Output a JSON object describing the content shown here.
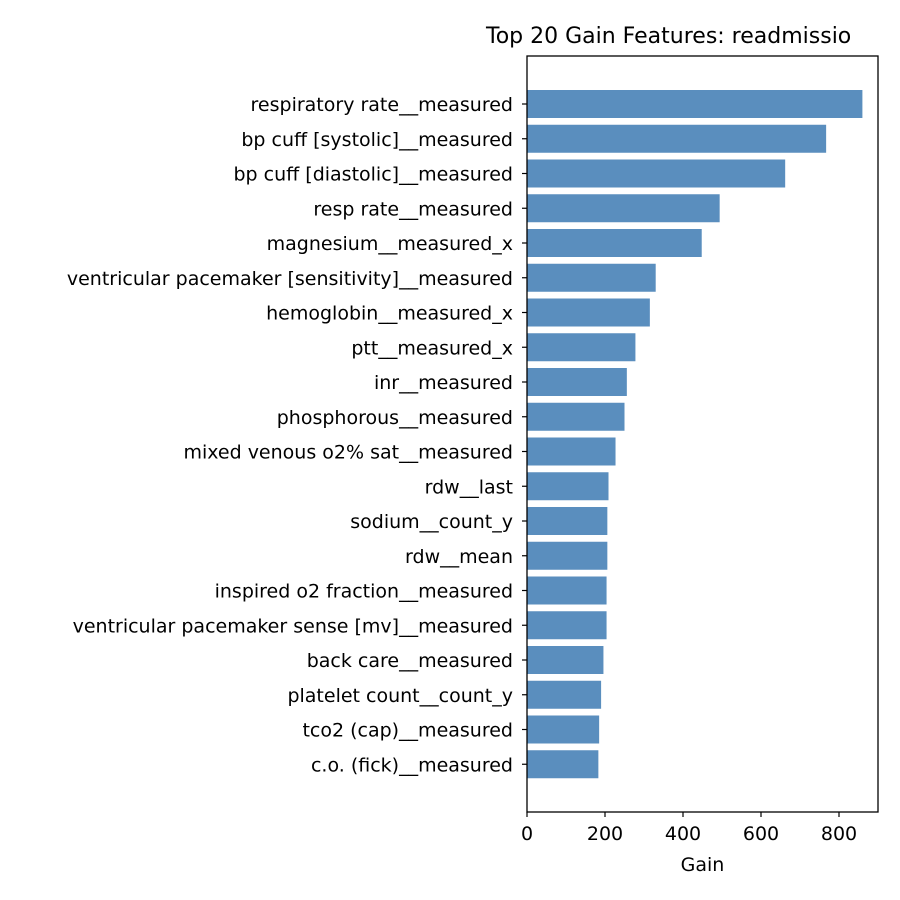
{
  "chart_data": {
    "type": "bar",
    "orientation": "horizontal",
    "title": "Top 20 Gain Features: readmissio",
    "xlabel": "Gain",
    "ylabel": "",
    "xlim": [
      0,
      900
    ],
    "xticks": [
      0,
      200,
      400,
      600,
      800
    ],
    "xtick_labels": [
      "0",
      "200",
      "400",
      "600",
      "800"
    ],
    "grid": false,
    "bar_color": "#5a8ebe",
    "categories": [
      "respiratory rate__measured",
      "bp cuff [systolic]__measured",
      "bp cuff [diastolic]__measured",
      "resp rate__measured",
      "magnesium__measured_x",
      "ventricular pacemaker [sensitivity]__measured",
      "hemoglobin__measured_x",
      "ptt__measured_x",
      "inr__measured",
      "phosphorous__measured",
      "mixed venous o2% sat__measured",
      "rdw__last",
      "sodium__count_y",
      "rdw__mean",
      "inspired o2 fraction__measured",
      "ventricular pacemaker sense [mv]__measured",
      "back care__measured",
      "platelet count__count_y",
      "tco2 (cap)__measured",
      "c.o. (fick)__measured"
    ],
    "values": [
      860,
      767,
      662,
      494,
      448,
      330,
      315,
      278,
      256,
      250,
      227,
      209,
      206,
      206,
      204,
      204,
      196,
      190,
      185,
      183
    ]
  }
}
